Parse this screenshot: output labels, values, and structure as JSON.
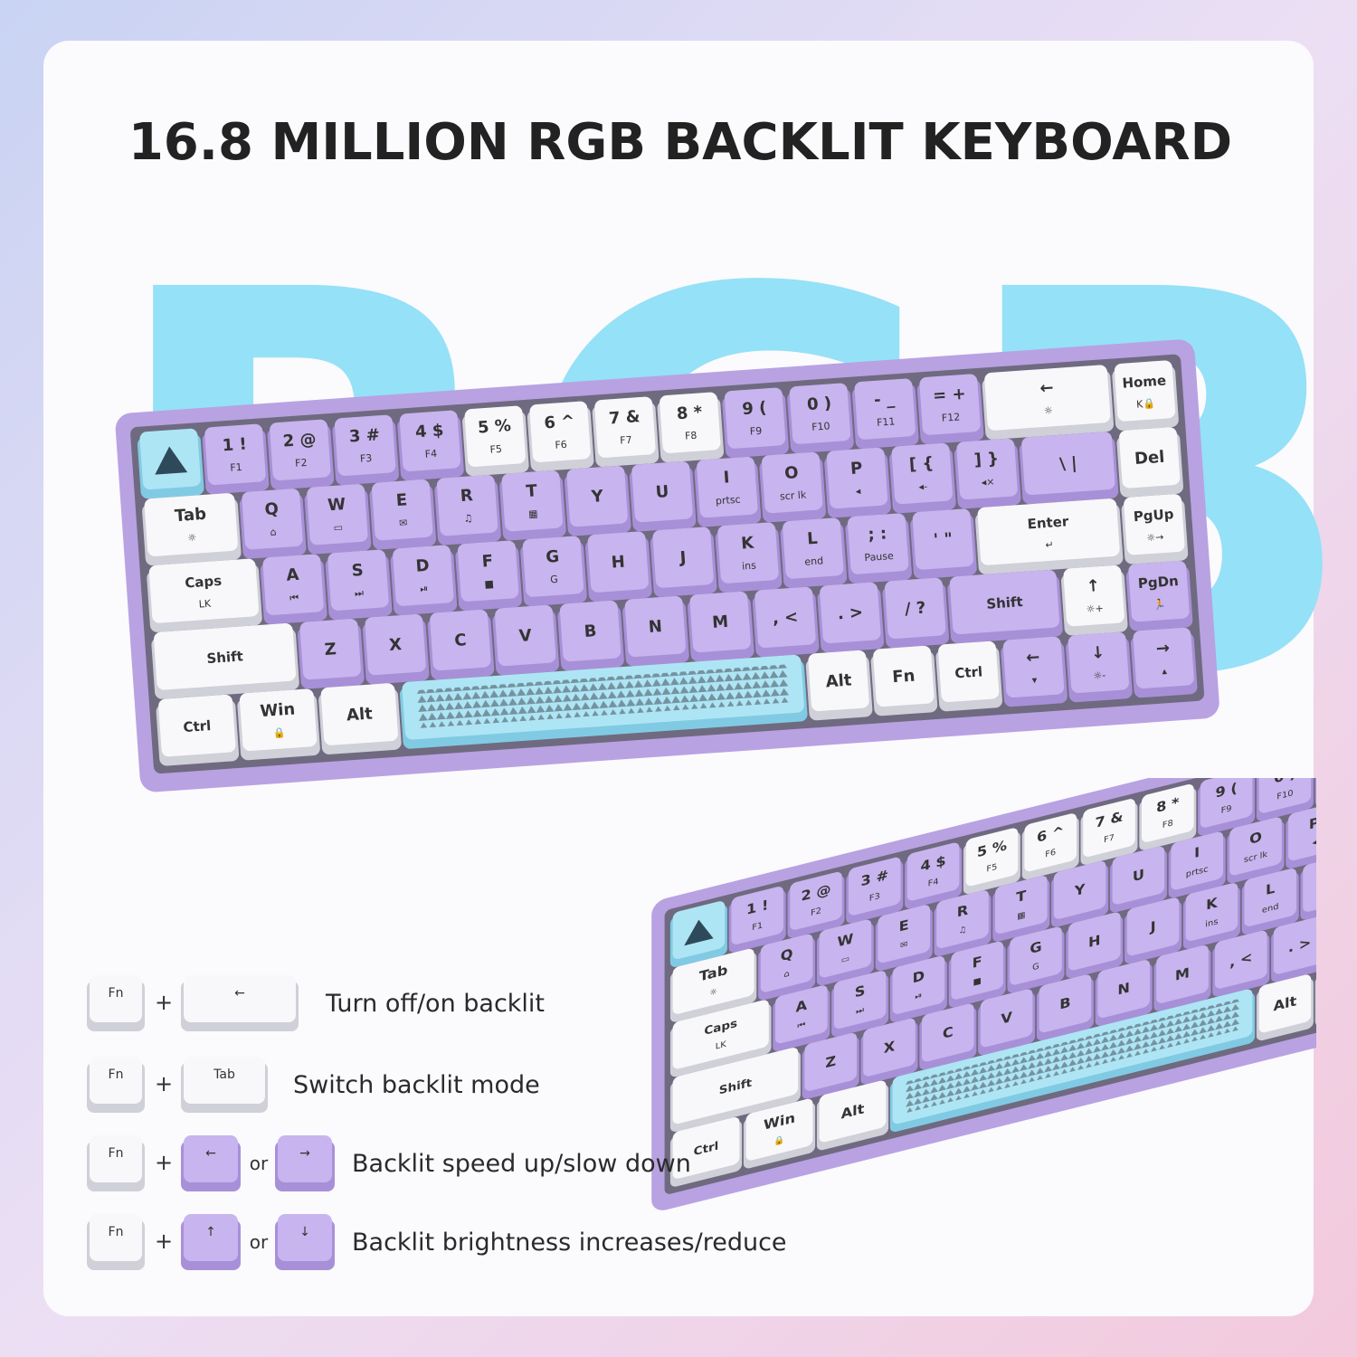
{
  "header": {
    "title": "16.8 MILLION RGB BACKLIT KEYBOARD",
    "backdrop": "RGB"
  },
  "keyboard": {
    "rows": [
      [
        null,
        {
          "label": "1 !",
          "sub": "F1"
        },
        {
          "label": "2 @",
          "sub": "F2"
        },
        {
          "label": "3 #",
          "sub": "F3"
        },
        {
          "label": "4 $",
          "sub": "F4"
        },
        {
          "label": "5 %",
          "sub": "F5"
        },
        {
          "label": "6 ^",
          "sub": "F6"
        },
        {
          "label": "7 &",
          "sub": "F7"
        },
        {
          "label": "8 *",
          "sub": "F8"
        },
        {
          "label": "9 (",
          "sub": "F9"
        },
        {
          "label": "0 )",
          "sub": "F10"
        },
        {
          "label": "- _",
          "sub": "F11"
        },
        {
          "label": "= +",
          "sub": "F12"
        },
        {
          "label": "←",
          "sub": "☼"
        },
        {
          "label": "Home",
          "sub": "K🔒"
        }
      ],
      [
        {
          "label": "Tab",
          "sub": "☼"
        },
        {
          "label": "Q",
          "sub": "⌂"
        },
        {
          "label": "W",
          "sub": "▭"
        },
        {
          "label": "E",
          "sub": "✉"
        },
        {
          "label": "R",
          "sub": "♫"
        },
        {
          "label": "T",
          "sub": "▦"
        },
        {
          "label": "Y"
        },
        {
          "label": "U"
        },
        {
          "label": "I",
          "sub": "prtsc"
        },
        {
          "label": "O",
          "sub": "scr lk"
        },
        {
          "label": "P",
          "sub": "◂"
        },
        {
          "label": "[ {",
          "sub": "◂-"
        },
        {
          "label": "] }",
          "sub": "◂×"
        },
        {
          "label": "\\ |"
        },
        {
          "label": "Del"
        }
      ],
      [
        {
          "label": "Caps",
          "sub": "LK"
        },
        {
          "label": "A",
          "sub": "⏮"
        },
        {
          "label": "S",
          "sub": "⏭"
        },
        {
          "label": "D",
          "sub": "⏯"
        },
        {
          "label": "F",
          "sub": "■"
        },
        {
          "label": "G",
          "sub": "G"
        },
        {
          "label": "H"
        },
        {
          "label": "J"
        },
        {
          "label": "K",
          "sub": "ins"
        },
        {
          "label": "L",
          "sub": "end"
        },
        {
          "label": "; :",
          "sub": "Pause"
        },
        {
          "label": "' \""
        },
        {
          "label": "Enter",
          "sub": "↵"
        },
        {
          "label": "PgUp",
          "sub": "☼→"
        }
      ],
      [
        {
          "label": "Shift"
        },
        {
          "label": "Z"
        },
        {
          "label": "X"
        },
        {
          "label": "C"
        },
        {
          "label": "V"
        },
        {
          "label": "B"
        },
        {
          "label": "N"
        },
        {
          "label": "M"
        },
        {
          "label": ", <"
        },
        {
          "label": ". >"
        },
        {
          "label": "/ ?"
        },
        {
          "label": "Shift"
        },
        {
          "label": "↑",
          "sub": "☼+"
        },
        {
          "label": "PgDn",
          "sub": "🏃"
        }
      ],
      [
        {
          "label": "Ctrl"
        },
        {
          "label": "Win",
          "sub": "🔒"
        },
        {
          "label": "Alt"
        },
        null,
        {
          "label": "Alt"
        },
        {
          "label": "Fn"
        },
        {
          "label": "Ctrl"
        },
        {
          "label": "←",
          "sub": "▾"
        },
        {
          "label": "↓",
          "sub": "☼-"
        },
        {
          "label": "→",
          "sub": "▴"
        }
      ]
    ]
  },
  "shortcuts": {
    "plus": "+",
    "or": "or",
    "items": [
      {
        "keys": [
          "Fn",
          "←"
        ],
        "text": "Turn off/on backlit"
      },
      {
        "keys": [
          "Fn",
          "Tab"
        ],
        "text": "Switch backlit mode"
      },
      {
        "keys": [
          "Fn",
          "←",
          "→"
        ],
        "text": "Backlit speed up/slow down"
      },
      {
        "keys": [
          "Fn",
          "↑",
          "↓"
        ],
        "text": "Backlit brightness increases/reduce"
      }
    ]
  }
}
